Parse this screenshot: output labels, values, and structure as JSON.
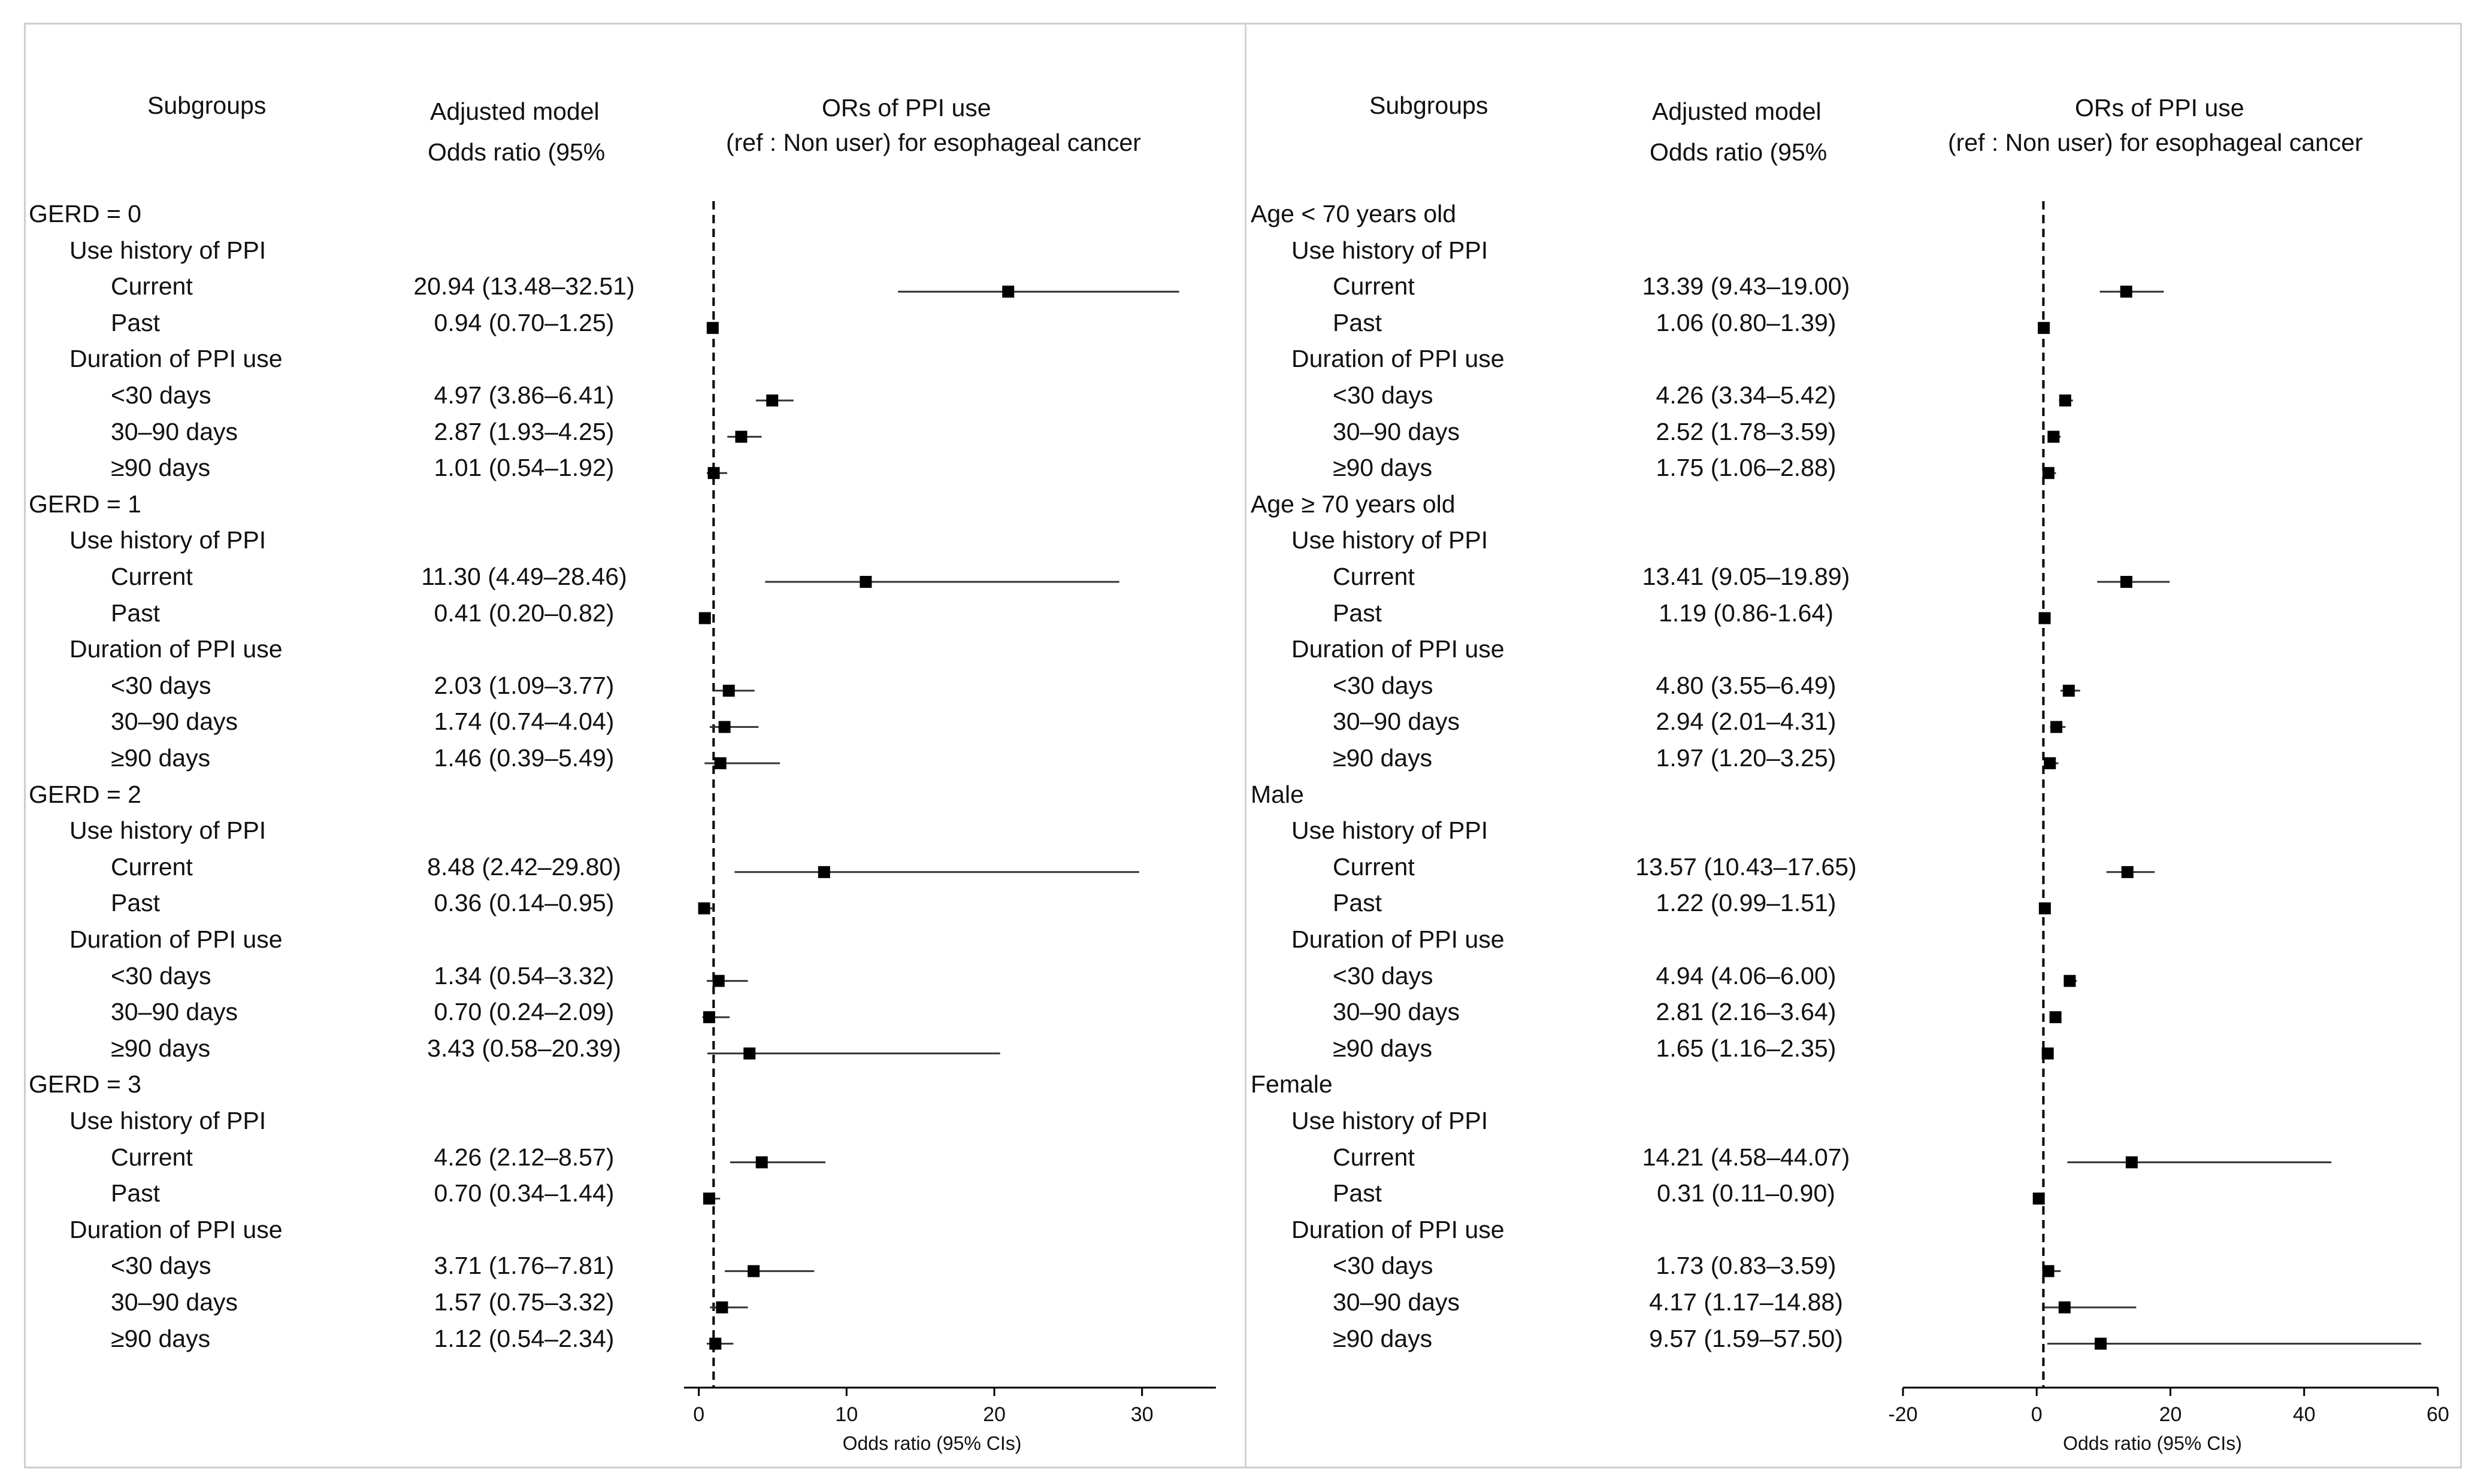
{
  "chart_data": [
    {
      "type": "forest",
      "headers": {
        "subgroups": "Subgroups",
        "model_line1": "Adjusted model",
        "model_line2": "Odds ratio (95%",
        "plot_line1": "ORs of PPI use",
        "plot_line2": "(ref : Non user) for esophageal cancer"
      },
      "xlabel": "Odds ratio (95% CIs)",
      "xlim": [
        -1,
        35
      ],
      "xticks": [
        0,
        10,
        20,
        30
      ],
      "reference_line": 1,
      "rows": [
        {
          "label": "GERD = 0",
          "level": 0
        },
        {
          "label": "Use history of PPI",
          "level": 1
        },
        {
          "label": "Current",
          "level": 2,
          "text": "20.94 (13.48–32.51)",
          "or": 20.94,
          "lo": 13.48,
          "hi": 32.51
        },
        {
          "label": "Past",
          "level": 2,
          "text": "0.94 (0.70–1.25)",
          "or": 0.94,
          "lo": 0.7,
          "hi": 1.25
        },
        {
          "label": "Duration of PPI use",
          "level": 1
        },
        {
          "label": "<30 days",
          "level": 2,
          "text": "4.97 (3.86–6.41)",
          "or": 4.97,
          "lo": 3.86,
          "hi": 6.41
        },
        {
          "label": "30–90 days",
          "level": 2,
          "text": "2.87 (1.93–4.25)",
          "or": 2.87,
          "lo": 1.93,
          "hi": 4.25
        },
        {
          "label": "≥90 days",
          "level": 2,
          "text": "1.01 (0.54–1.92)",
          "or": 1.01,
          "lo": 0.54,
          "hi": 1.92
        },
        {
          "label": "GERD = 1",
          "level": 0
        },
        {
          "label": "Use history of PPI",
          "level": 1
        },
        {
          "label": "Current",
          "level": 2,
          "text": "11.30 (4.49–28.46)",
          "or": 11.3,
          "lo": 4.49,
          "hi": 28.46
        },
        {
          "label": "Past",
          "level": 2,
          "text": "0.41 (0.20–0.82)",
          "or": 0.41,
          "lo": 0.2,
          "hi": 0.82
        },
        {
          "label": "Duration of PPI use",
          "level": 1
        },
        {
          "label": "<30 days",
          "level": 2,
          "text": "2.03 (1.09–3.77)",
          "or": 2.03,
          "lo": 1.09,
          "hi": 3.77
        },
        {
          "label": "30–90 days",
          "level": 2,
          "text": "1.74 (0.74–4.04)",
          "or": 1.74,
          "lo": 0.74,
          "hi": 4.04
        },
        {
          "label": "≥90 days",
          "level": 2,
          "text": "1.46 (0.39–5.49)",
          "or": 1.46,
          "lo": 0.39,
          "hi": 5.49
        },
        {
          "label": "GERD = 2",
          "level": 0
        },
        {
          "label": "Use history of PPI",
          "level": 1
        },
        {
          "label": "Current",
          "level": 2,
          "text": "8.48 (2.42–29.80)",
          "or": 8.48,
          "lo": 2.42,
          "hi": 29.8
        },
        {
          "label": "Past",
          "level": 2,
          "text": "0.36 (0.14–0.95)",
          "or": 0.36,
          "lo": 0.14,
          "hi": 0.95
        },
        {
          "label": "Duration of PPI use",
          "level": 1
        },
        {
          "label": "<30 days",
          "level": 2,
          "text": "1.34 (0.54–3.32)",
          "or": 1.34,
          "lo": 0.54,
          "hi": 3.32
        },
        {
          "label": "30–90 days",
          "level": 2,
          "text": "0.70 (0.24–2.09)",
          "or": 0.7,
          "lo": 0.24,
          "hi": 2.09
        },
        {
          "label": "≥90 days",
          "level": 2,
          "text": "3.43 (0.58–20.39)",
          "or": 3.43,
          "lo": 0.58,
          "hi": 20.39
        },
        {
          "label": "GERD = 3",
          "level": 0
        },
        {
          "label": "Use history of PPI",
          "level": 1
        },
        {
          "label": "Current",
          "level": 2,
          "text": "4.26 (2.12–8.57)",
          "or": 4.26,
          "lo": 2.12,
          "hi": 8.57
        },
        {
          "label": "Past",
          "level": 2,
          "text": "0.70 (0.34–1.44)",
          "or": 0.7,
          "lo": 0.34,
          "hi": 1.44
        },
        {
          "label": "Duration of PPI use",
          "level": 1
        },
        {
          "label": "<30 days",
          "level": 2,
          "text": "3.71 (1.76–7.81)",
          "or": 3.71,
          "lo": 1.76,
          "hi": 7.81
        },
        {
          "label": "30–90 days",
          "level": 2,
          "text": "1.57 (0.75–3.32)",
          "or": 1.57,
          "lo": 0.75,
          "hi": 3.32
        },
        {
          "label": "≥90 days",
          "level": 2,
          "text": "1.12 (0.54–2.34)",
          "or": 1.12,
          "lo": 0.54,
          "hi": 2.34
        }
      ]
    },
    {
      "type": "forest",
      "headers": {
        "subgroups": "Subgroups",
        "model_line1": "Adjusted model",
        "model_line2": "Odds ratio (95%",
        "plot_line1": "ORs of PPI use",
        "plot_line2": "(ref : Non user) for esophageal cancer"
      },
      "xlabel": "Odds ratio (95% CIs)",
      "xlim": [
        -20,
        60
      ],
      "xticks": [
        -20,
        0,
        20,
        40,
        60
      ],
      "reference_line": 1,
      "rows": [
        {
          "label": "Age < 70 years old",
          "level": 0
        },
        {
          "label": "Use history of PPI",
          "level": 1
        },
        {
          "label": "Current",
          "level": 2,
          "text": "13.39 (9.43–19.00)",
          "or": 13.39,
          "lo": 9.43,
          "hi": 19.0
        },
        {
          "label": "Past",
          "level": 2,
          "text": "1.06 (0.80–1.39)",
          "or": 1.06,
          "lo": 0.8,
          "hi": 1.39
        },
        {
          "label": "Duration of PPI use",
          "level": 1
        },
        {
          "label": "<30 days",
          "level": 2,
          "text": "4.26 (3.34–5.42)",
          "or": 4.26,
          "lo": 3.34,
          "hi": 5.42
        },
        {
          "label": "30–90 days",
          "level": 2,
          "text": "2.52 (1.78–3.59)",
          "or": 2.52,
          "lo": 1.78,
          "hi": 3.59
        },
        {
          "label": "≥90 days",
          "level": 2,
          "text": "1.75 (1.06–2.88)",
          "or": 1.75,
          "lo": 1.06,
          "hi": 2.88
        },
        {
          "label": "Age ≥ 70 years old",
          "level": 0
        },
        {
          "label": "Use history of PPI",
          "level": 1
        },
        {
          "label": "Current",
          "level": 2,
          "text": "13.41 (9.05–19.89)",
          "or": 13.41,
          "lo": 9.05,
          "hi": 19.89
        },
        {
          "label": "Past",
          "level": 2,
          "text": "1.19 (0.86-1.64)",
          "or": 1.19,
          "lo": 0.86,
          "hi": 1.64
        },
        {
          "label": "Duration of PPI use",
          "level": 1
        },
        {
          "label": "<30 days",
          "level": 2,
          "text": "4.80 (3.55–6.49)",
          "or": 4.8,
          "lo": 3.55,
          "hi": 6.49
        },
        {
          "label": "30–90 days",
          "level": 2,
          "text": "2.94 (2.01–4.31)",
          "or": 2.94,
          "lo": 2.01,
          "hi": 4.31
        },
        {
          "label": "≥90 days",
          "level": 2,
          "text": "1.97 (1.20–3.25)",
          "or": 1.97,
          "lo": 1.2,
          "hi": 3.25
        },
        {
          "label": "Male",
          "level": 0
        },
        {
          "label": "Use history of PPI",
          "level": 1
        },
        {
          "label": "Current",
          "level": 2,
          "text": "13.57 (10.43–17.65)",
          "or": 13.57,
          "lo": 10.43,
          "hi": 17.65
        },
        {
          "label": "Past",
          "level": 2,
          "text": "1.22 (0.99–1.51)",
          "or": 1.22,
          "lo": 0.99,
          "hi": 1.51
        },
        {
          "label": "Duration of PPI use",
          "level": 1
        },
        {
          "label": "<30 days",
          "level": 2,
          "text": "4.94 (4.06–6.00)",
          "or": 4.94,
          "lo": 4.06,
          "hi": 6.0
        },
        {
          "label": "30–90 days",
          "level": 2,
          "text": "2.81 (2.16–3.64)",
          "or": 2.81,
          "lo": 2.16,
          "hi": 3.64
        },
        {
          "label": "≥90 days",
          "level": 2,
          "text": "1.65 (1.16–2.35)",
          "or": 1.65,
          "lo": 1.16,
          "hi": 2.35
        },
        {
          "label": "Female",
          "level": 0
        },
        {
          "label": "Use history of PPI",
          "level": 1
        },
        {
          "label": "Current",
          "level": 2,
          "text": "14.21 (4.58–44.07)",
          "or": 14.21,
          "lo": 4.58,
          "hi": 44.07
        },
        {
          "label": "Past",
          "level": 2,
          "text": "0.31 (0.11–0.90)",
          "or": 0.31,
          "lo": 0.11,
          "hi": 0.9
        },
        {
          "label": "Duration of PPI use",
          "level": 1
        },
        {
          "label": "<30 days",
          "level": 2,
          "text": "1.73 (0.83–3.59)",
          "or": 1.73,
          "lo": 0.83,
          "hi": 3.59
        },
        {
          "label": "30–90 days",
          "level": 2,
          "text": "4.17 (1.17–14.88)",
          "or": 4.17,
          "lo": 1.17,
          "hi": 14.88
        },
        {
          "label": "≥90 days",
          "level": 2,
          "text": "9.57 (1.59–57.50)",
          "or": 9.57,
          "lo": 1.59,
          "hi": 57.5
        }
      ]
    }
  ]
}
